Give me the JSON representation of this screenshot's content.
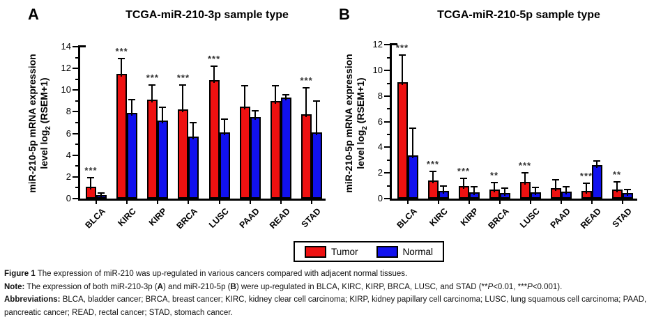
{
  "chart_data": [
    {
      "type": "bar",
      "panel_label": "A",
      "title": "TCGA-miR-210-3p sample type",
      "ylabel": "miR-210-5p mRNA expression level log2 (RSEM+1)",
      "ylabel_lines": [
        [
          {
            "t": "miR-210-5p mRNA expression"
          }
        ],
        [
          {
            "t": "level log"
          },
          {
            "t": "2",
            "sub": true
          },
          {
            "t": " (RSEM+1)"
          }
        ]
      ],
      "categories": [
        "BLCA",
        "KIRC",
        "KIRP",
        "BRCA",
        "LUSC",
        "PAAD",
        "READ",
        "STAD"
      ],
      "series": [
        {
          "name": "Tumor",
          "color": "#ee1111",
          "values": [
            1.1,
            11.5,
            9.1,
            8.2,
            10.9,
            8.5,
            9.0,
            7.8
          ],
          "error_top": [
            1.9,
            12.9,
            10.5,
            10.5,
            12.2,
            10.4,
            10.4,
            10.2
          ]
        },
        {
          "name": "Normal",
          "color": "#1111ee",
          "values": [
            0.3,
            7.9,
            7.2,
            5.7,
            6.1,
            7.5,
            9.3,
            6.1
          ],
          "error_top": [
            0.5,
            9.1,
            8.4,
            7.0,
            7.3,
            8.1,
            9.6,
            9.0
          ]
        }
      ],
      "significance": [
        "***",
        "***",
        "***",
        "***",
        "***",
        "",
        "",
        "***"
      ],
      "ylim": [
        0,
        14
      ],
      "ytick_step": 2,
      "grid": false
    },
    {
      "type": "bar",
      "panel_label": "B",
      "title": "TCGA-miR-210-5p sample type",
      "ylabel": "miR-210-5p mRNA expression level log2 (RSEM+1)",
      "ylabel_lines": [
        [
          {
            "t": "miR-210-5p mRNA expression"
          }
        ],
        [
          {
            "t": "level log"
          },
          {
            "t": "2",
            "sub": true
          },
          {
            "t": " (RSEM+1)"
          }
        ]
      ],
      "categories": [
        "BLCA",
        "KIRC",
        "KIRP",
        "BRCA",
        "LUSC",
        "PAAD",
        "READ",
        "STAD"
      ],
      "series": [
        {
          "name": "Tumor",
          "color": "#ee1111",
          "values": [
            9.1,
            1.4,
            1.0,
            0.7,
            1.3,
            0.8,
            0.6,
            0.7
          ],
          "error_top": [
            11.2,
            2.1,
            1.6,
            1.25,
            2.0,
            1.45,
            1.2,
            1.3
          ]
        },
        {
          "name": "Normal",
          "color": "#1111ee",
          "values": [
            3.4,
            0.6,
            0.5,
            0.45,
            0.5,
            0.55,
            2.6,
            0.45
          ],
          "error_top": [
            5.5,
            1.0,
            0.9,
            0.8,
            0.85,
            0.95,
            2.95,
            0.7
          ]
        }
      ],
      "significance": [
        "***",
        "***",
        "***",
        "**",
        "***",
        "",
        "***",
        "**"
      ],
      "ylim": [
        0,
        12
      ],
      "ytick_step": 2,
      "grid": false
    }
  ],
  "legend": {
    "position": "bottom-center",
    "items": [
      {
        "label": "Tumor",
        "color": "#ee1111"
      },
      {
        "label": "Normal",
        "color": "#1111ee"
      }
    ]
  },
  "caption": {
    "figure": [
      {
        "t": "Figure 1",
        "b": true
      },
      {
        "t": " The expression of miR-210 was up-regulated in various cancers compared with adjacent normal tissues."
      }
    ],
    "note": [
      {
        "t": "Note:",
        "b": true
      },
      {
        "t": " The expression of both miR-210-3p ("
      },
      {
        "t": "A",
        "b": true
      },
      {
        "t": ") and miR-210-5p ("
      },
      {
        "t": "B",
        "b": true
      },
      {
        "t": ") were up-regulated in BLCA, KIRC, KIRP, BRCA, LUSC, and STAD (**"
      },
      {
        "t": "P",
        "i": true
      },
      {
        "t": "<0.01, ***"
      },
      {
        "t": "P",
        "i": true
      },
      {
        "t": "<0.001)."
      }
    ],
    "abbreviations": [
      {
        "t": "Abbreviations:",
        "b": true
      },
      {
        "t": " BLCA, bladder cancer; BRCA, breast cancer; KIRC, kidney clear cell carcinoma; KIRP, kidney papillary cell carcinoma; LUSC, lung squamous cell carcinoma; PAAD, pancreatic cancer; READ, rectal cancer; STAD, stomach cancer."
      }
    ]
  }
}
